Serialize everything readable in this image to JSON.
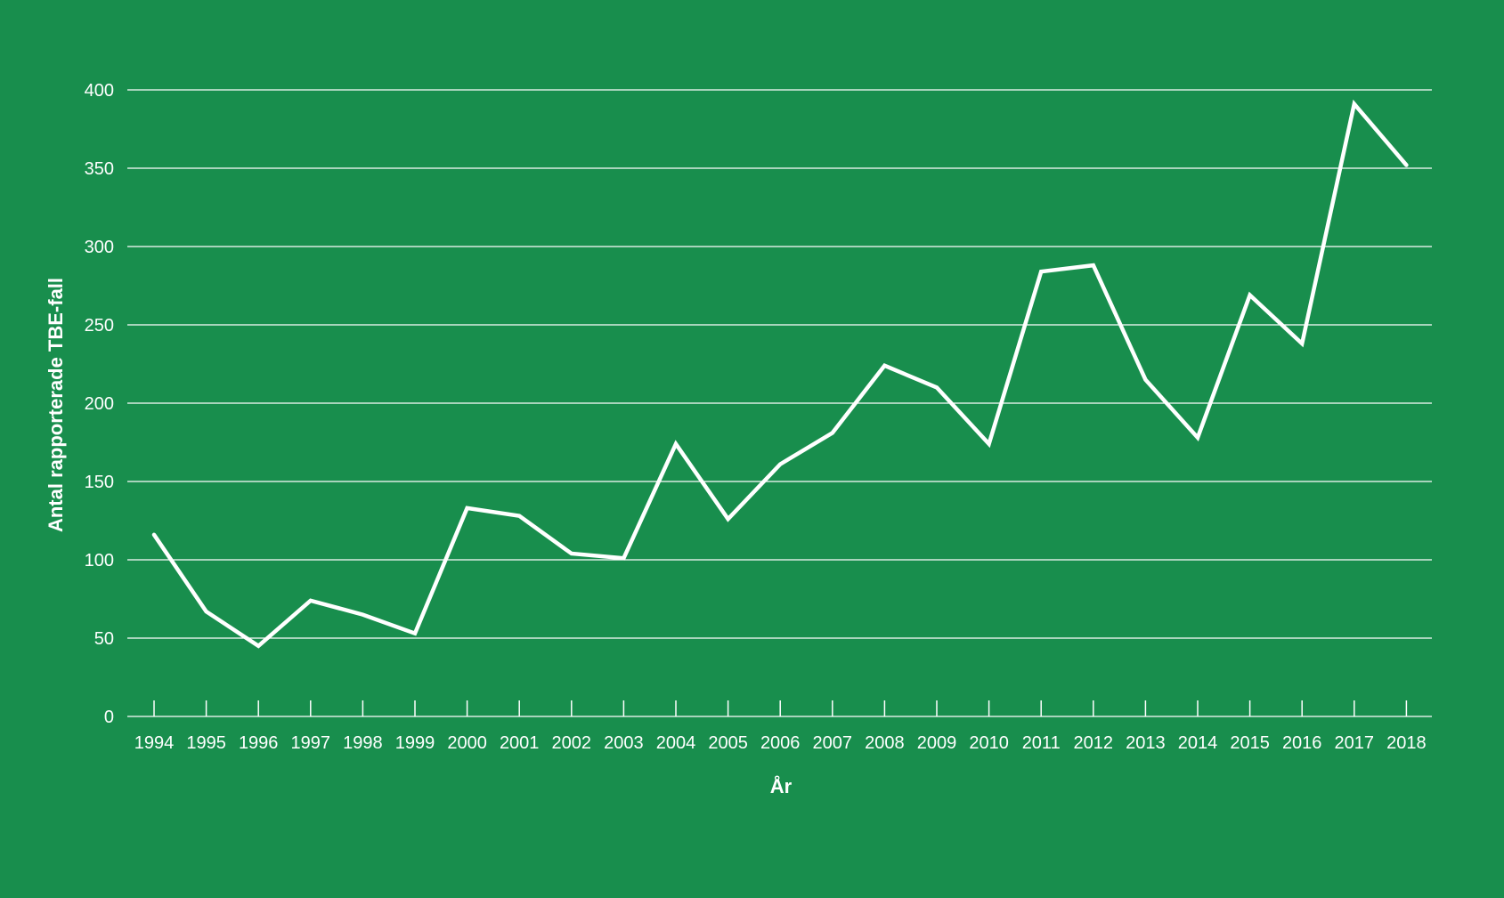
{
  "colors": {
    "background": "#188E4D",
    "foreground": "#FFFFFF"
  },
  "chart_data": {
    "type": "line",
    "title": "",
    "xlabel": "År",
    "ylabel": "Antal rapporterade TBE-fall",
    "ylim": [
      0,
      400
    ],
    "yticks": [
      0,
      50,
      100,
      150,
      200,
      250,
      300,
      350,
      400
    ],
    "grid": true,
    "legend": "none",
    "categories": [
      "1994",
      "1995",
      "1996",
      "1997",
      "1998",
      "1999",
      "2000",
      "2001",
      "2002",
      "2003",
      "2004",
      "2005",
      "2006",
      "2007",
      "2008",
      "2009",
      "2010",
      "2011",
      "2012",
      "2013",
      "2014",
      "2015",
      "2016",
      "2017",
      "2018"
    ],
    "series": [
      {
        "values": [
          116,
          67,
          45,
          74,
          65,
          53,
          133,
          128,
          104,
          101,
          174,
          126,
          161,
          181,
          224,
          210,
          174,
          284,
          288,
          215,
          178,
          269,
          238,
          391,
          352
        ]
      }
    ]
  }
}
